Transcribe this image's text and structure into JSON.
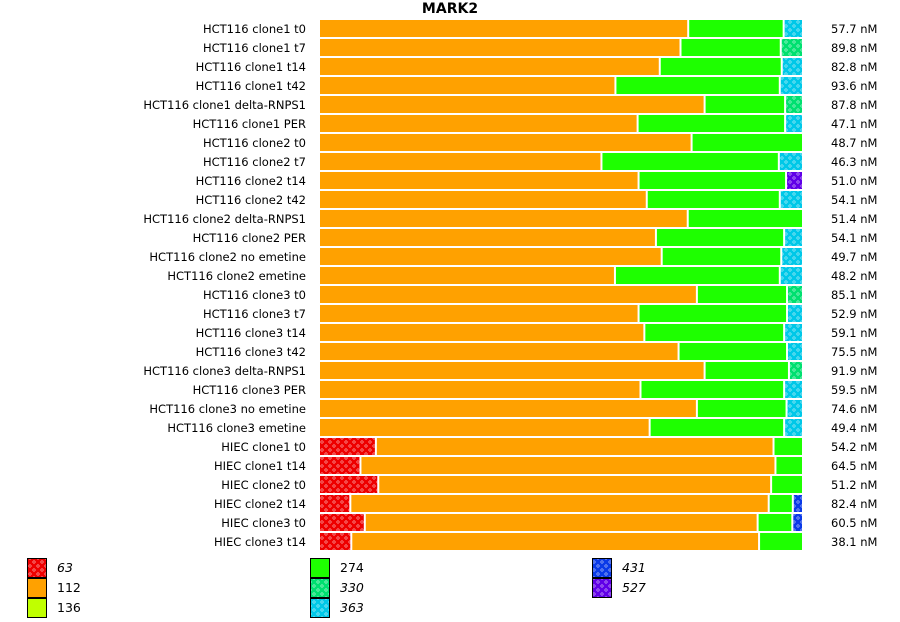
{
  "chart_data": {
    "type": "bar",
    "orientation": "horizontal-stacked-normalized",
    "title": "MARK2",
    "xlabel": "",
    "ylabel": "",
    "legend_position": "bottom",
    "segment_order": [
      "63",
      "112",
      "274",
      "330",
      "363",
      "431",
      "527"
    ],
    "legend": [
      {
        "key": "63",
        "label": "63",
        "color": "#ee0000",
        "pattern": true,
        "italic": true
      },
      {
        "key": "112",
        "label": "112",
        "color": "#ffa100",
        "pattern": false,
        "italic": false
      },
      {
        "key": "136",
        "label": "136",
        "color": "#c0ff00",
        "pattern": false,
        "italic": false
      },
      {
        "key": "274",
        "label": "274",
        "color": "#1eff00",
        "pattern": false,
        "italic": false
      },
      {
        "key": "330",
        "label": "330",
        "color": "#00e070",
        "pattern": true,
        "italic": true
      },
      {
        "key": "363",
        "label": "363",
        "color": "#00c8e8",
        "pattern": true,
        "italic": true
      },
      {
        "key": "431",
        "label": "431",
        "color": "#0a3ae8",
        "pattern": true,
        "italic": true
      },
      {
        "key": "527",
        "label": "527",
        "color": "#6000e8",
        "pattern": true,
        "italic": true
      }
    ],
    "rows": [
      {
        "label": "HCT116 clone1 t0",
        "total": "57.7 nM",
        "segments": {
          "112": 76.6,
          "274": 19.8,
          "363": 3.6
        }
      },
      {
        "label": "HCT116 clone1 t7",
        "total": "89.8 nM",
        "segments": {
          "112": 75.0,
          "274": 20.8,
          "330": 4.2
        }
      },
      {
        "label": "HCT116 clone1 t14",
        "total": "82.8 nM",
        "segments": {
          "112": 70.7,
          "274": 25.3,
          "363": 4.0
        }
      },
      {
        "label": "HCT116 clone1 t42",
        "total": "93.6 nM",
        "segments": {
          "112": 61.5,
          "274": 34.1,
          "363": 4.4
        }
      },
      {
        "label": "HCT116 clone1 delta-RNPS1",
        "total": "87.8 nM",
        "segments": {
          "112": 80.0,
          "274": 16.7,
          "330": 3.3
        }
      },
      {
        "label": "HCT116 clone1 PER",
        "total": "47.1 nM",
        "segments": {
          "112": 66.1,
          "274": 30.6,
          "363": 3.3
        }
      },
      {
        "label": "HCT116 clone2 t0",
        "total": "48.7 nM",
        "segments": {
          "112": 77.3,
          "274": 22.7
        }
      },
      {
        "label": "HCT116 clone2 t7",
        "total": "46.3 nM",
        "segments": {
          "112": 58.6,
          "274": 36.8,
          "363": 4.6
        }
      },
      {
        "label": "HCT116 clone2 t14",
        "total": "51.0 nM",
        "segments": {
          "112": 66.3,
          "274": 30.6,
          "527": 3.1
        }
      },
      {
        "label": "HCT116 clone2 t42",
        "total": "54.1 nM",
        "segments": {
          "112": 68.0,
          "274": 27.6,
          "363": 4.4
        }
      },
      {
        "label": "HCT116 clone2 delta-RNPS1",
        "total": "51.4 nM",
        "segments": {
          "112": 76.5,
          "274": 23.5
        }
      },
      {
        "label": "HCT116 clone2 PER",
        "total": "54.1 nM",
        "segments": {
          "112": 69.9,
          "274": 26.6,
          "363": 3.5
        }
      },
      {
        "label": "HCT116 clone2 no emetine",
        "total": "49.7 nM",
        "segments": {
          "112": 71.1,
          "274": 24.8,
          "363": 4.1
        }
      },
      {
        "label": "HCT116 clone2 emetine",
        "total": "48.2 nM",
        "segments": {
          "112": 61.4,
          "274": 34.2,
          "363": 4.4
        }
      },
      {
        "label": "HCT116 clone3 t0",
        "total": "85.1 nM",
        "segments": {
          "112": 78.4,
          "274": 18.7,
          "330": 2.9
        }
      },
      {
        "label": "HCT116 clone3 t7",
        "total": "52.9 nM",
        "segments": {
          "112": 66.3,
          "274": 30.8,
          "363": 2.9
        }
      },
      {
        "label": "HCT116 clone3 t14",
        "total": "59.1 nM",
        "segments": {
          "112": 67.5,
          "274": 29.0,
          "363": 3.5
        }
      },
      {
        "label": "HCT116 clone3 t42",
        "total": "75.5 nM",
        "segments": {
          "112": 74.6,
          "274": 22.5,
          "363": 2.9
        }
      },
      {
        "label": "HCT116 clone3 delta-RNPS1",
        "total": "91.9 nM",
        "segments": {
          "112": 80.0,
          "274": 17.5,
          "330": 2.5
        }
      },
      {
        "label": "HCT116 clone3 PER",
        "total": "59.5 nM",
        "segments": {
          "112": 66.7,
          "274": 29.8,
          "363": 3.5
        }
      },
      {
        "label": "HCT116 clone3 no emetine",
        "total": "74.6 nM",
        "segments": {
          "112": 78.4,
          "274": 18.6,
          "363": 3.0
        }
      },
      {
        "label": "HCT116 clone3 emetine",
        "total": "49.4 nM",
        "segments": {
          "112": 68.6,
          "274": 27.9,
          "363": 3.5
        }
      },
      {
        "label": "HIEC clone1 t0",
        "total": "54.2 nM",
        "segments": {
          "63": 11.8,
          "112": 82.5,
          "274": 5.7
        }
      },
      {
        "label": "HIEC clone1 t14",
        "total": "64.5 nM",
        "segments": {
          "63": 8.6,
          "112": 86.1,
          "274": 5.3
        }
      },
      {
        "label": "HIEC clone2 t0",
        "total": "51.2 nM",
        "segments": {
          "63": 12.3,
          "112": 81.5,
          "274": 6.2
        }
      },
      {
        "label": "HIEC clone2 t14",
        "total": "82.4 nM",
        "segments": {
          "63": 6.5,
          "112": 86.8,
          "274": 5.0,
          "431": 1.7
        }
      },
      {
        "label": "HIEC clone3 t0",
        "total": "60.5 nM",
        "segments": {
          "63": 9.5,
          "112": 81.5,
          "274": 7.2,
          "431": 1.8
        }
      },
      {
        "label": "HIEC clone3 t14",
        "total": "38.1 nM",
        "segments": {
          "63": 6.7,
          "112": 84.6,
          "274": 8.7
        }
      }
    ]
  }
}
